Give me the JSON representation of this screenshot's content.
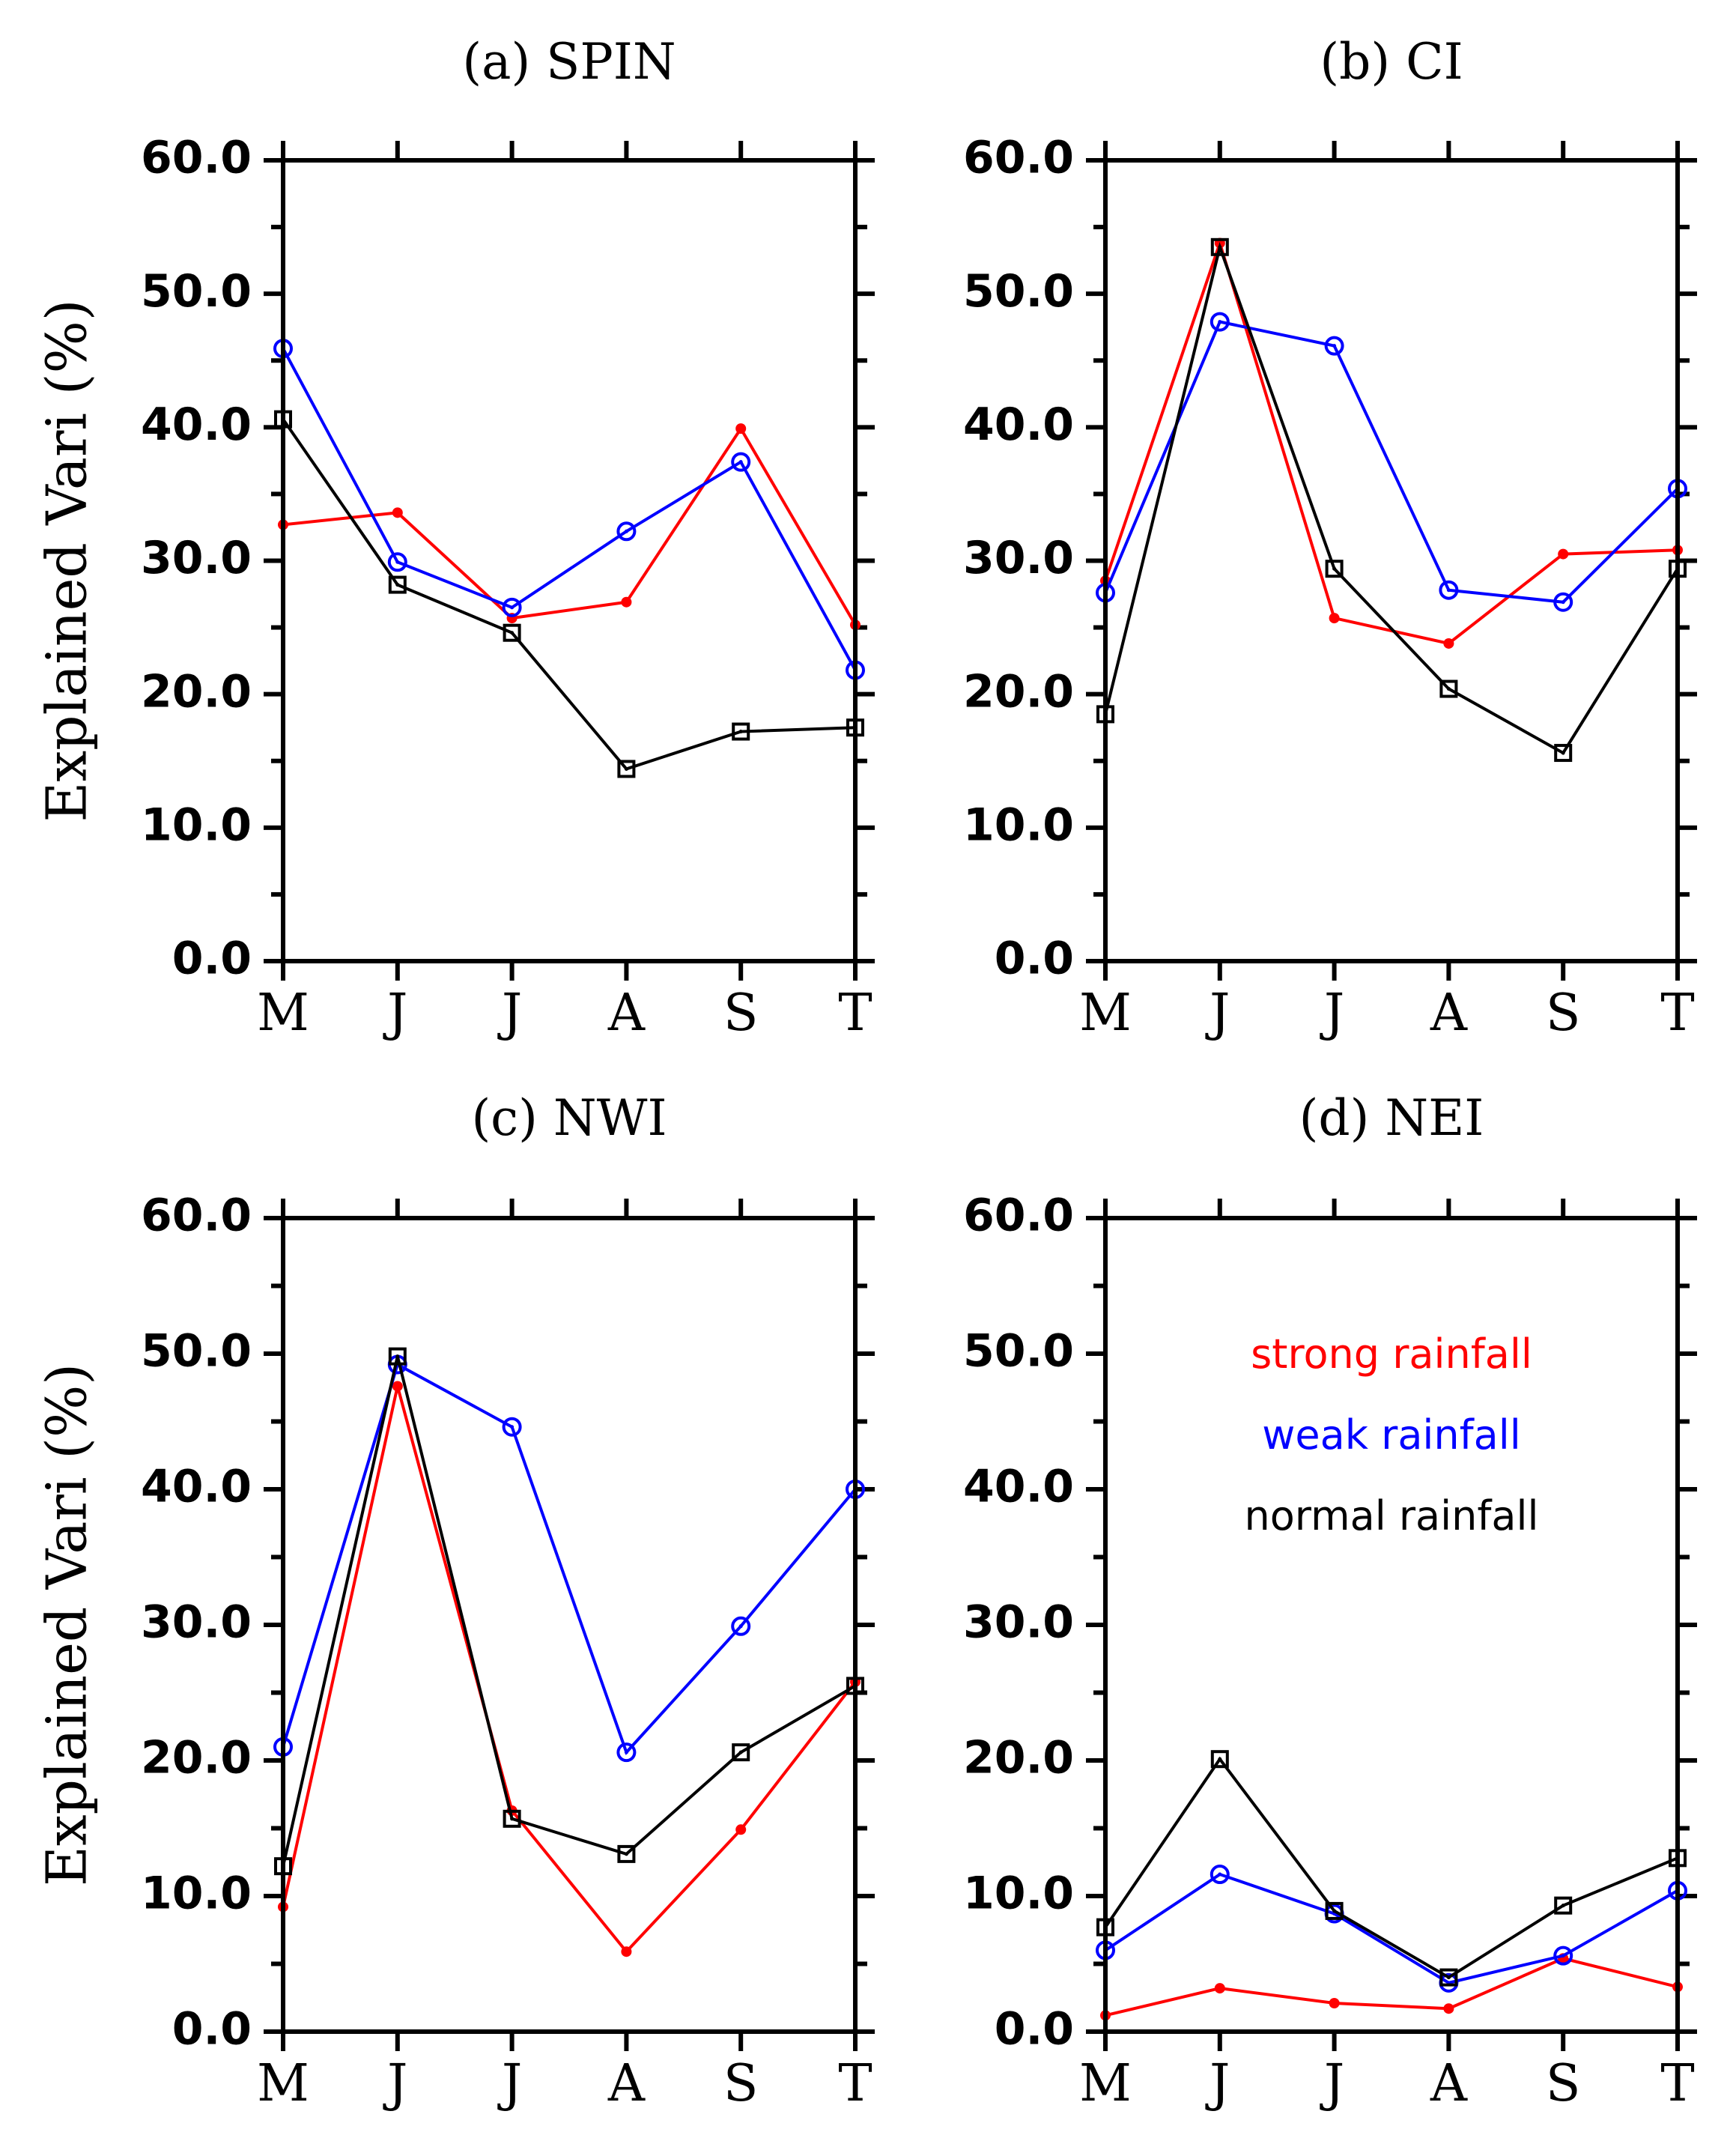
{
  "chart_data": [
    {
      "type": "line",
      "title": "(a) SPIN",
      "ylabel": "Explained Vari (%)",
      "ylim": [
        0,
        60
      ],
      "yticks": [
        "0.0",
        "10.0",
        "20.0",
        "30.0",
        "40.0",
        "50.0",
        "60.0"
      ],
      "categories": [
        "M",
        "J",
        "J",
        "A",
        "S",
        "T"
      ],
      "series": [
        {
          "color": "#ff0000",
          "marker": "dot",
          "values": [
            32.7,
            33.6,
            25.7,
            26.9,
            39.9,
            25.2
          ]
        },
        {
          "color": "#0000ff",
          "marker": "circle",
          "values": [
            45.9,
            29.9,
            26.5,
            32.2,
            37.4,
            21.8
          ]
        },
        {
          "color": "#000000",
          "marker": "square",
          "values": [
            40.6,
            28.2,
            24.6,
            14.4,
            17.2,
            17.5
          ]
        }
      ]
    },
    {
      "type": "line",
      "title": "(b) CI",
      "ylabel": "",
      "ylim": [
        0,
        60
      ],
      "yticks": [
        "0.0",
        "10.0",
        "20.0",
        "30.0",
        "40.0",
        "50.0",
        "60.0"
      ],
      "categories": [
        "M",
        "J",
        "J",
        "A",
        "S",
        "T"
      ],
      "series": [
        {
          "color": "#ff0000",
          "marker": "dot",
          "values": [
            28.5,
            53.8,
            25.7,
            23.8,
            30.5,
            30.8
          ]
        },
        {
          "color": "#0000ff",
          "marker": "circle",
          "values": [
            27.6,
            47.9,
            46.1,
            27.8,
            26.9,
            35.4
          ]
        },
        {
          "color": "#000000",
          "marker": "square",
          "values": [
            18.5,
            53.5,
            29.4,
            20.4,
            15.6,
            29.4
          ]
        }
      ]
    },
    {
      "type": "line",
      "title": "(c) NWI",
      "ylabel": "Explained Vari (%)",
      "ylim": [
        0,
        60
      ],
      "yticks": [
        "0.0",
        "10.0",
        "20.0",
        "30.0",
        "40.0",
        "50.0",
        "60.0"
      ],
      "categories": [
        "M",
        "J",
        "J",
        "A",
        "S",
        "T"
      ],
      "series": [
        {
          "color": "#ff0000",
          "marker": "dot",
          "values": [
            9.2,
            47.6,
            16.3,
            5.9,
            14.9,
            25.8
          ]
        },
        {
          "color": "#0000ff",
          "marker": "circle",
          "values": [
            21.0,
            49.2,
            44.6,
            20.6,
            29.9,
            40.0
          ]
        },
        {
          "color": "#000000",
          "marker": "square",
          "values": [
            12.2,
            49.8,
            15.7,
            13.1,
            20.6,
            25.5
          ]
        }
      ]
    },
    {
      "type": "line",
      "title": "(d) NEI",
      "ylabel": "",
      "ylim": [
        0,
        60
      ],
      "yticks": [
        "0.0",
        "10.0",
        "20.0",
        "30.0",
        "40.0",
        "50.0",
        "60.0"
      ],
      "categories": [
        "M",
        "J",
        "J",
        "A",
        "S",
        "T"
      ],
      "legend": [
        "strong rainfall",
        "weak rainfall",
        "normal rainfall"
      ],
      "legend_colors": [
        "#ff0000",
        "#0000ff",
        "#000000"
      ],
      "series": [
        {
          "name": "strong rainfall",
          "color": "#ff0000",
          "marker": "dot",
          "values": [
            1.2,
            3.2,
            2.1,
            1.7,
            5.4,
            3.3
          ]
        },
        {
          "name": "weak rainfall",
          "color": "#0000ff",
          "marker": "circle",
          "values": [
            6.0,
            11.6,
            8.7,
            3.6,
            5.6,
            10.4
          ]
        },
        {
          "name": "normal rainfall",
          "color": "#000000",
          "marker": "square",
          "values": [
            7.7,
            20.1,
            8.9,
            4.0,
            9.3,
            12.8
          ]
        }
      ]
    }
  ]
}
